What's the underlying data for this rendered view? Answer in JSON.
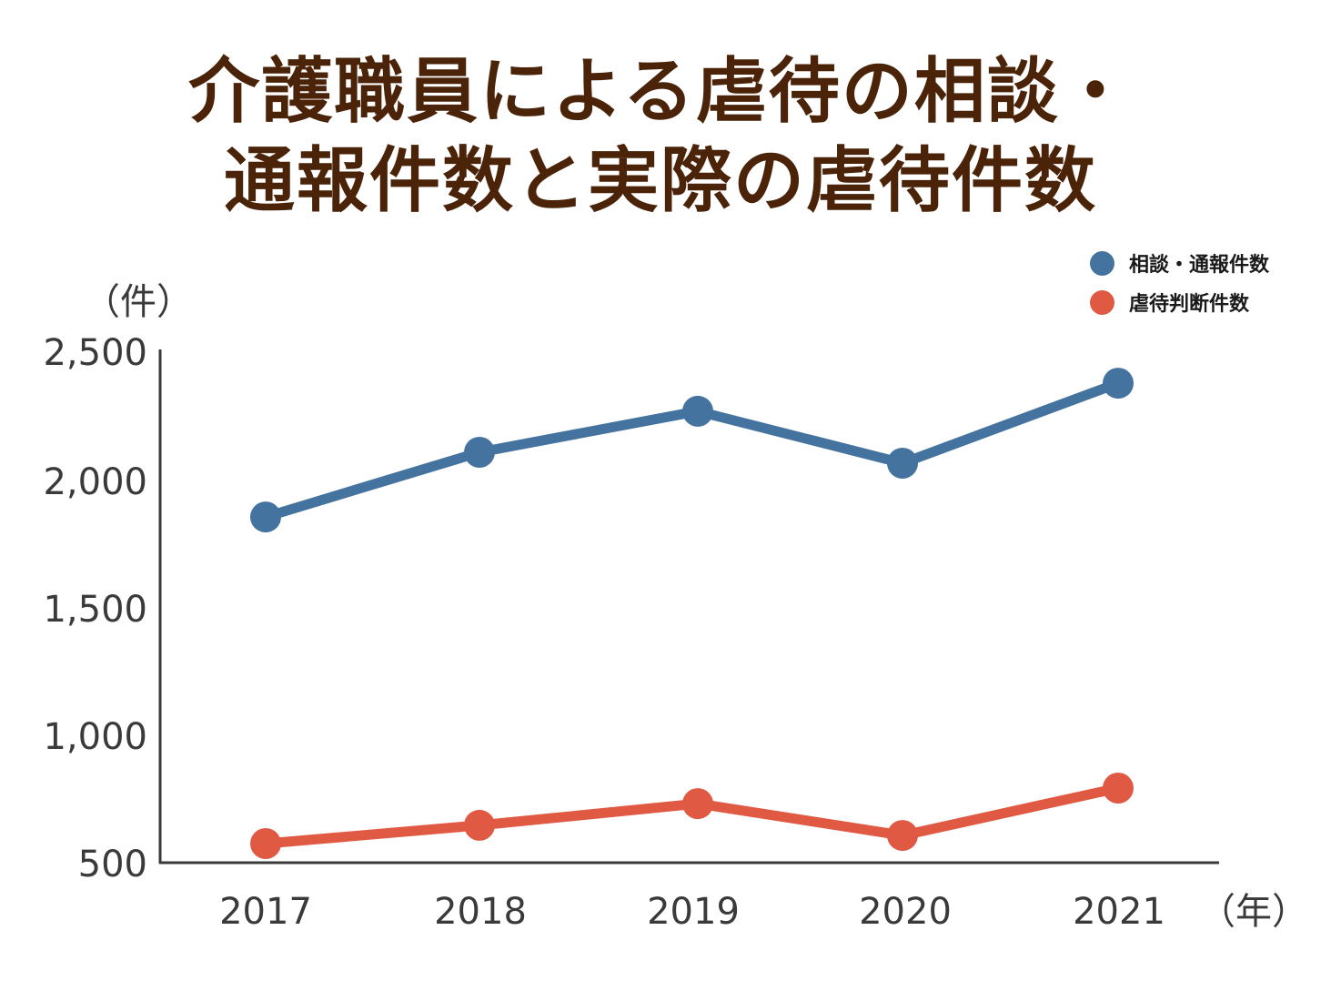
{
  "title": {
    "line1": "介護職員による虐待の相談・",
    "line2": "通報件数と実際の虐待件数",
    "color": "#4a2308"
  },
  "legend": [
    {
      "label": "相談・通報件数",
      "color": "#44739f"
    },
    {
      "label": "虐待判断件数",
      "color": "#e05a43"
    }
  ],
  "axes": {
    "y_unit": "（件）",
    "x_unit": "（年）",
    "y_ticks": [
      "2,500",
      "2,000",
      "1,500",
      "1,000",
      "500"
    ],
    "x_ticks": [
      "2017",
      "2018",
      "2019",
      "2020",
      "2021"
    ]
  },
  "chart_data": {
    "type": "line",
    "title": "介護職員による虐待の相談・通報件数と実際の虐待件数",
    "xlabel": "（年）",
    "ylabel": "（件）",
    "categories": [
      "2017",
      "2018",
      "2019",
      "2020",
      "2021"
    ],
    "series": [
      {
        "name": "相談・通報件数",
        "color": "#44739f",
        "values": [
          1864,
          2118,
          2279,
          2075,
          2389
        ]
      },
      {
        "name": "虐待判断件数",
        "color": "#e05a43",
        "values": [
          582,
          654,
          739,
          614,
          800
        ]
      }
    ],
    "ylim": [
      500,
      2500
    ],
    "yticks": [
      500,
      1000,
      1500,
      2000,
      2500
    ],
    "grid": false,
    "legend_position": "top-right"
  }
}
